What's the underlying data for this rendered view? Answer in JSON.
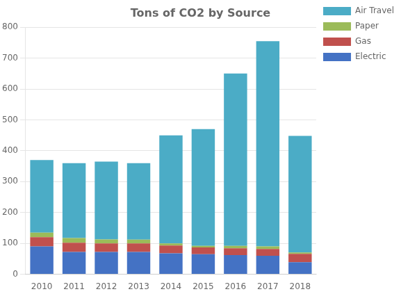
{
  "chart_data": {
    "type": "bar",
    "title": "Tons of CO2 by Source",
    "categories": [
      "2010",
      "2011",
      "2012",
      "2013",
      "2014",
      "2015",
      "2016",
      "2017",
      "2018"
    ],
    "series": [
      {
        "name": "Electric",
        "color": "#4472C4",
        "values": [
          90,
          72,
          72,
          72,
          68,
          65,
          62,
          60,
          39.15
        ]
      },
      {
        "name": "Gas",
        "color": "#C0504D",
        "values": [
          30,
          30,
          28,
          28,
          25,
          22,
          22,
          22,
          27
        ]
      },
      {
        "name": "Paper",
        "color": "#9BBB59",
        "values": [
          15,
          15,
          13,
          12,
          7,
          5,
          8,
          8,
          4.24
        ]
      },
      {
        "name": "Air Travel",
        "color": "#4BACC6",
        "values": [
          235,
          243,
          252,
          248,
          350,
          378,
          558,
          665,
          378
        ]
      }
    ],
    "stacked": true,
    "ylim": [
      0,
      800
    ],
    "yticks": [
      0,
      100,
      200,
      300,
      400,
      500,
      600,
      700,
      800
    ],
    "grid": true,
    "legend": "right"
  }
}
